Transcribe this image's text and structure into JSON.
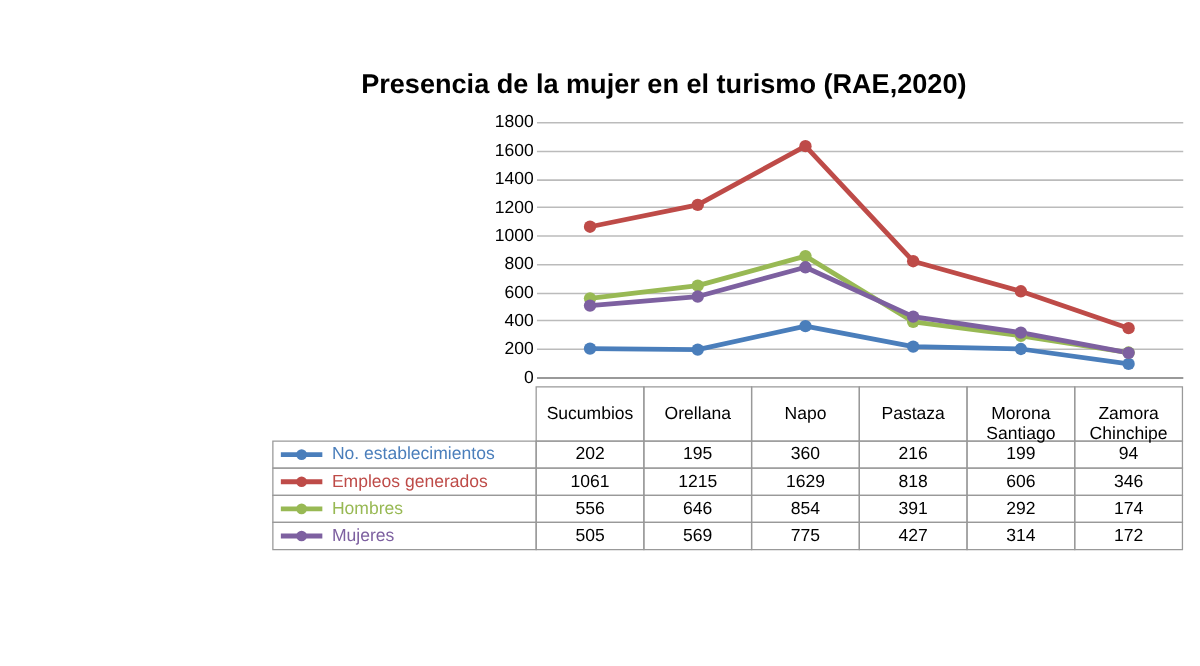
{
  "chart_data": {
    "type": "line",
    "title": "Presencia de la mujer en el turismo (RAE,2020)",
    "categories": [
      "Sucumbios",
      "Orellana",
      "Napo",
      "Pastaza",
      "Morona Santiago",
      "Zamora Chinchipe"
    ],
    "series": [
      {
        "name": "No. establecimientos",
        "color": "#4a7ebb",
        "values": [
          202,
          195,
          360,
          216,
          199,
          94
        ]
      },
      {
        "name": "Empleos generados",
        "color": "#be4b48",
        "values": [
          1061,
          1215,
          1629,
          818,
          606,
          346
        ]
      },
      {
        "name": "Hombres",
        "color": "#98b954",
        "values": [
          556,
          646,
          854,
          391,
          292,
          174
        ]
      },
      {
        "name": "Mujeres",
        "color": "#7d60a0",
        "values": [
          505,
          569,
          775,
          427,
          314,
          172
        ]
      }
    ],
    "ylim": [
      0,
      1800
    ],
    "yticks": [
      0,
      200,
      400,
      600,
      800,
      1000,
      1200,
      1400,
      1600,
      1800
    ],
    "grid": "y",
    "marker": "circle",
    "line_style": "solid",
    "data_labels": true,
    "legend": "bottom left"
  }
}
